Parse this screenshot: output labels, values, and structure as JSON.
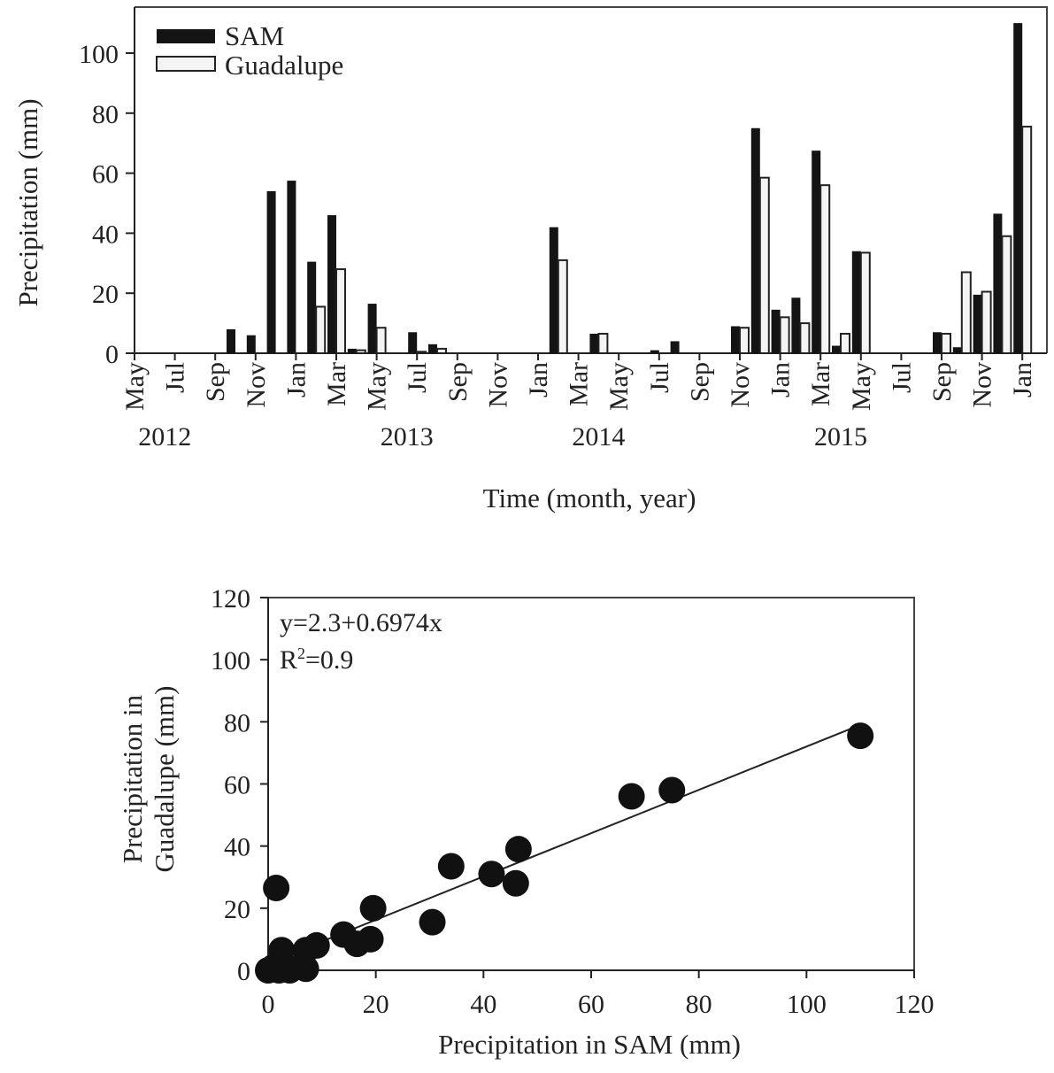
{
  "chart_data": [
    {
      "type": "bar",
      "title": "",
      "xlabel": "Time (month, year)",
      "ylabel": "Precipitation (mm)",
      "ylim": [
        0,
        110
      ],
      "yticks": [
        0,
        20,
        40,
        60,
        80,
        100
      ],
      "legend_position": "top-left",
      "month_tick_labels": [
        "May",
        "Jul",
        "Sep",
        "Nov",
        "Jan",
        "Mar",
        "May",
        "Jul",
        "Sep",
        "Nov",
        "Jan",
        "Mar",
        "May",
        "Jul",
        "Sep",
        "Nov",
        "Jan",
        "Mar",
        "May",
        "Jul",
        "Sep",
        "Nov",
        "Jan"
      ],
      "year_labels": [
        {
          "label": "2012",
          "month_index": 1.5
        },
        {
          "label": "2013",
          "month_index": 13.5
        },
        {
          "label": "2014",
          "month_index": 23
        },
        {
          "label": "2015",
          "month_index": 35
        }
      ],
      "categories": [
        "May 2012",
        "Jun 2012",
        "Jul 2012",
        "Aug 2012",
        "Sep 2012",
        "Oct 2012",
        "Nov 2012",
        "Dec 2012",
        "Jan 2013",
        "Feb 2013",
        "Mar 2013",
        "Apr 2013",
        "May 2013",
        "Jun 2013",
        "Jul 2013",
        "Aug 2013",
        "Sep 2013",
        "Oct 2013",
        "Nov 2013",
        "Dec 2013",
        "Jan 2014",
        "Feb 2014",
        "Mar 2014",
        "Apr 2014",
        "May 2014",
        "Jun 2014",
        "Jul 2014",
        "Aug 2014",
        "Sep 2014",
        "Oct 2014",
        "Nov 2014",
        "Dec 2014",
        "Jan 2015",
        "Feb 2015",
        "Mar 2015",
        "Apr 2015",
        "May 2015",
        "Jun 2015",
        "Jul 2015",
        "Aug 2015",
        "Sep 2015",
        "Oct 2015",
        "Nov 2015",
        "Dec 2015",
        "Jan 2016"
      ],
      "series": [
        {
          "name": "SAM",
          "color": "#141414",
          "values": [
            0,
            0,
            0,
            0,
            0,
            8,
            6,
            54,
            57.5,
            30.5,
            46,
            1.5,
            16.5,
            0,
            7,
            3,
            0,
            0,
            0,
            0,
            0,
            42,
            0,
            6.5,
            0,
            0,
            1,
            4,
            0,
            0,
            9,
            75,
            14.5,
            18.5,
            67.5,
            2.5,
            34,
            0,
            0,
            0,
            7,
            2,
            19.5,
            46.5,
            110
          ]
        },
        {
          "name": "Guadalupe",
          "color": "#f4f4f4",
          "values": [
            0,
            0,
            0,
            0,
            0,
            0,
            0,
            0,
            0,
            15.5,
            28,
            1,
            8.5,
            0,
            0.5,
            1.5,
            0,
            0,
            0,
            0,
            0,
            31,
            0,
            6.5,
            0,
            0,
            0,
            0,
            0,
            0,
            8.5,
            58.5,
            12,
            10,
            56,
            6.5,
            33.5,
            0,
            0,
            0,
            6.5,
            27,
            20.5,
            39,
            75.5
          ]
        }
      ]
    },
    {
      "type": "scatter",
      "title": "",
      "xlabel": "Precipitation in SAM (mm)",
      "ylabel_lines": [
        "Precipitation in",
        "Guadalupe (mm)"
      ],
      "xlim": [
        0,
        120
      ],
      "ylim": [
        0,
        120
      ],
      "xticks": [
        0,
        20,
        40,
        60,
        80,
        100,
        120
      ],
      "yticks": [
        0,
        20,
        40,
        60,
        80,
        100,
        120
      ],
      "annotation": {
        "equation": "y=2.3+0.6974x",
        "r2_prefix": "R",
        "r2_sup": "2",
        "r2_value": "=0.9"
      },
      "fit": {
        "intercept": 2.3,
        "slope": 0.6974,
        "x_range": [
          8,
          110
        ]
      },
      "points": [
        {
          "x": 110,
          "y": 75.5
        },
        {
          "x": 75,
          "y": 58
        },
        {
          "x": 67.5,
          "y": 56
        },
        {
          "x": 46.5,
          "y": 39
        },
        {
          "x": 46,
          "y": 28
        },
        {
          "x": 41.5,
          "y": 31
        },
        {
          "x": 34,
          "y": 33.5
        },
        {
          "x": 30.5,
          "y": 15.5
        },
        {
          "x": 19.5,
          "y": 20
        },
        {
          "x": 19,
          "y": 10
        },
        {
          "x": 16.5,
          "y": 8.5
        },
        {
          "x": 14,
          "y": 11.5
        },
        {
          "x": 9,
          "y": 8
        },
        {
          "x": 7,
          "y": 6.5
        },
        {
          "x": 6.5,
          "y": 1.5
        },
        {
          "x": 3,
          "y": 1.5
        },
        {
          "x": 2.5,
          "y": 6.5
        },
        {
          "x": 1.5,
          "y": 26.5
        },
        {
          "x": 1,
          "y": 1
        },
        {
          "x": 0,
          "y": 0
        },
        {
          "x": 7,
          "y": 0.5
        },
        {
          "x": 4,
          "y": 0
        },
        {
          "x": 2,
          "y": 0
        }
      ]
    }
  ]
}
